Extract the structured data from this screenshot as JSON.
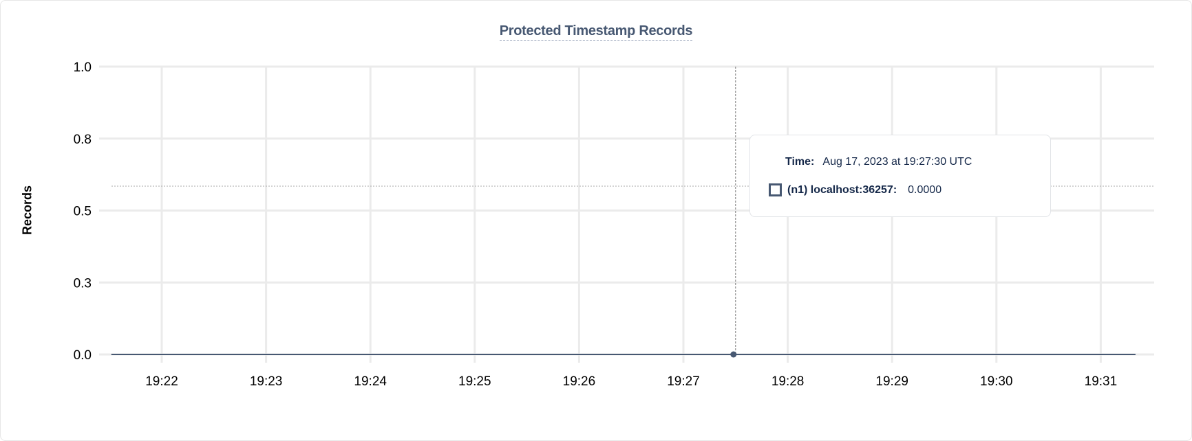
{
  "chart_data": {
    "type": "line",
    "title": "Protected Timestamp Records",
    "ylabel": "Records",
    "xlabel": "",
    "ylim": [
      0,
      1
    ],
    "y_ticks": [
      0,
      0.25,
      0.5,
      0.75,
      1
    ],
    "y_tick_labels": [
      "0.0",
      "0.3",
      "0.5",
      "0.8",
      "1.0"
    ],
    "xlim": [
      "19:21:31",
      "19:31:20"
    ],
    "x_ticks": [
      "19:22",
      "19:23",
      "19:24",
      "19:25",
      "19:26",
      "19:27",
      "19:28",
      "19:29",
      "19:30",
      "19:31"
    ],
    "grid": true,
    "series": [
      {
        "name": "(n1) localhost:36257",
        "color": "#475872",
        "x": [
          "19:21:31",
          "19:22:00",
          "19:23:00",
          "19:24:00",
          "19:25:00",
          "19:26:00",
          "19:27:00",
          "19:27:30",
          "19:28:00",
          "19:29:00",
          "19:30:00",
          "19:31:00",
          "19:31:20"
        ],
        "values": [
          0,
          0,
          0,
          0,
          0,
          0,
          0,
          0,
          0,
          0,
          0,
          0,
          0
        ]
      }
    ],
    "hover": {
      "x": "19:27:30",
      "y": 0
    },
    "tooltip": {
      "time_label": "Time:",
      "time_value": "Aug 17, 2023 at 19:27:30 UTC",
      "series_label": "(n1) localhost:36257:",
      "series_value": "0.0000"
    }
  }
}
